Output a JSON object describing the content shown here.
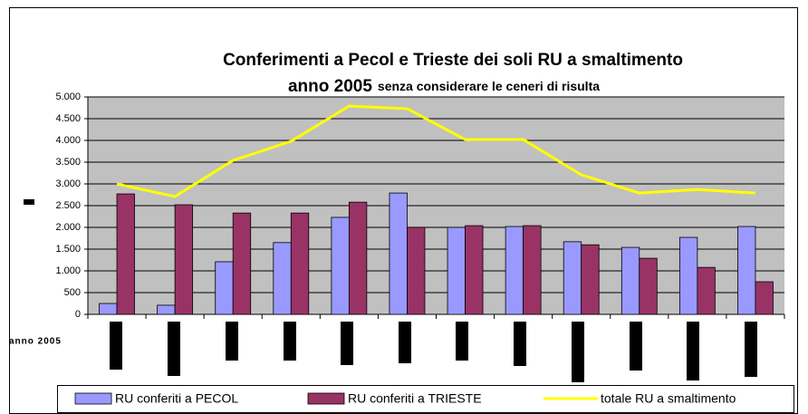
{
  "chart_data": {
    "type": "bar",
    "title": [
      "Conferimenti a Pecol e Trieste dei soli RU a smaltimento",
      "anno 2005"
    ],
    "subtitle": "senza considerare le ceneri di risulta",
    "xlabel": "anno 2005",
    "categories": [
      null,
      null,
      null,
      null,
      null,
      null,
      null,
      null,
      null,
      null,
      null,
      null
    ],
    "series": [
      {
        "name": "RU conferiti a PECOL",
        "color": "#9999ff",
        "type": "bar",
        "values": [
          250,
          210,
          1210,
          1650,
          2230,
          2790,
          2000,
          2020,
          1670,
          1540,
          1770,
          2020
        ]
      },
      {
        "name": "RU conferiti a TRIESTE",
        "color": "#993366",
        "type": "bar",
        "values": [
          2770,
          2520,
          2330,
          2330,
          2580,
          2000,
          2040,
          2040,
          1600,
          1290,
          1080,
          750
        ]
      },
      {
        "name": "totale RU a  smaltimento",
        "color": "#ffff00",
        "type": "line",
        "values": [
          3000,
          2710,
          3540,
          3980,
          4790,
          4730,
          4020,
          4020,
          3210,
          2790,
          2870,
          2790
        ]
      }
    ],
    "ylim": [
      0,
      5000
    ],
    "yticks": [
      {
        "value": 0,
        "label": "0"
      },
      {
        "value": 500,
        "label": "500"
      },
      {
        "value": 1000,
        "label": "1.000"
      },
      {
        "value": 1500,
        "label": "1.500"
      },
      {
        "value": 2000,
        "label": "2.000"
      },
      {
        "value": 2500,
        "label": "2.500"
      },
      {
        "value": 3000,
        "label": "3.000"
      },
      {
        "value": 3500,
        "label": "3.500"
      },
      {
        "value": 4000,
        "label": "4.000"
      },
      {
        "value": 4500,
        "label": "4.500"
      },
      {
        "value": 5000,
        "label": "5.000"
      }
    ],
    "grid": true
  }
}
